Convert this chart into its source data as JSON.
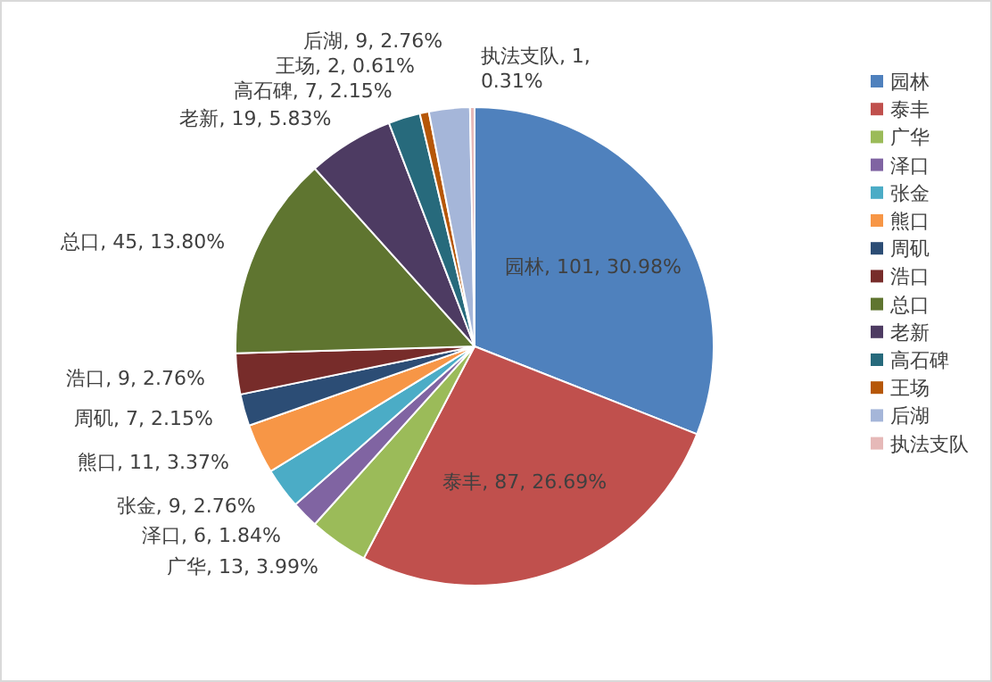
{
  "chart_data": {
    "type": "pie",
    "categories": [
      "园林",
      "泰丰",
      "广华",
      "泽口",
      "张金",
      "熊口",
      "周矶",
      "浩口",
      "总口",
      "老新",
      "高石碑",
      "王场",
      "后湖",
      "执法支队"
    ],
    "values": [
      101,
      87,
      13,
      6,
      9,
      11,
      7,
      9,
      45,
      19,
      7,
      2,
      9,
      1
    ],
    "colors": [
      "#4f81bd",
      "#c0504d",
      "#9bbb59",
      "#8064a2",
      "#4bacc6",
      "#f79646",
      "#2c4d75",
      "#772c2a",
      "#5f7530",
      "#4d3b62",
      "#276a7c",
      "#b65708",
      "#a5b6d9",
      "#e6b9b8"
    ],
    "value_labels": [
      "园林, 101, 30.98%",
      "泰丰, 87, 26.69%",
      "广华, 13, 3.99%",
      "泽口, 6, 1.84%",
      "张金, 9, 2.76%",
      "熊口, 11, 3.37%",
      "周矶, 7, 2.15%",
      "浩口, 9, 2.76%",
      "总口, 45, 13.80%",
      "老新, 19, 5.83%",
      "高石碑, 7, 2.15%",
      "王场, 2, 0.61%",
      "后湖, 9, 2.76%",
      "执法支队, 1, 0.31%"
    ],
    "legend": "right"
  }
}
